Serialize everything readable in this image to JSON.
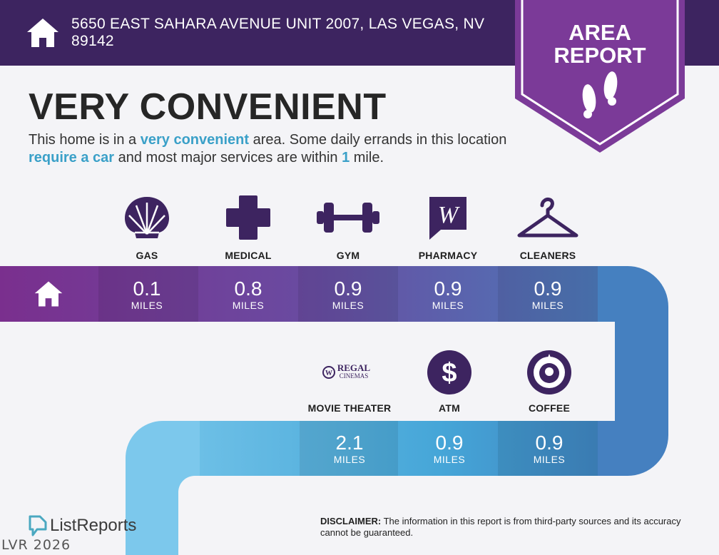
{
  "header": {
    "address": "5650 EAST SAHARA AVENUE UNIT 2007, LAS VEGAS, NV 89142",
    "home_icon": "house-icon"
  },
  "badge": {
    "line1": "AREA",
    "line2": "REPORT",
    "icon": "footprints-icon"
  },
  "headline": "VERY CONVENIENT",
  "description": {
    "part1": "This home is in a ",
    "hl1": "very convenient",
    "part2": " area. Some daily errands in this location ",
    "hl2": "require a car",
    "part3": " and most major services are within ",
    "hl3": "1",
    "part4": " mile."
  },
  "row1": [
    {
      "label": "GAS",
      "icon": "shell-gas-icon",
      "value": "0.1",
      "unit": "MILES"
    },
    {
      "label": "MEDICAL",
      "icon": "medical-cross-icon",
      "value": "0.8",
      "unit": "MILES"
    },
    {
      "label": "GYM",
      "icon": "dumbbell-icon",
      "value": "0.9",
      "unit": "MILES"
    },
    {
      "label": "PHARMACY",
      "icon": "walgreens-icon",
      "value": "0.9",
      "unit": "MILES"
    },
    {
      "label": "CLEANERS",
      "icon": "hanger-icon",
      "value": "0.9",
      "unit": "MILES"
    }
  ],
  "row2": [
    {
      "label": "MOVIE THEATER",
      "icon": "regal-cinemas-icon",
      "logo_text1": "REGAL",
      "logo_text2": "CINEMAS",
      "value": "2.1",
      "unit": "MILES"
    },
    {
      "label": "ATM",
      "icon": "dollar-icon",
      "value": "0.9",
      "unit": "MILES"
    },
    {
      "label": "COFFEE",
      "icon": "starbucks-icon",
      "value": "0.9",
      "unit": "MILES"
    }
  ],
  "logo": {
    "text": "ListReports",
    "icon": "listreports-logo-icon"
  },
  "disclaimer": {
    "label": "DISCLAIMER:",
    "text": " The information in this report is from third-party sources and its accuracy cannot be guaranteed."
  },
  "watermark": "LVR 2026",
  "colors": {
    "header": "#3d2460",
    "badge": "#7b3a98",
    "highlight": "#3aa0c8",
    "road_start": "#7a2f8e",
    "road_end": "#3f86c2"
  }
}
